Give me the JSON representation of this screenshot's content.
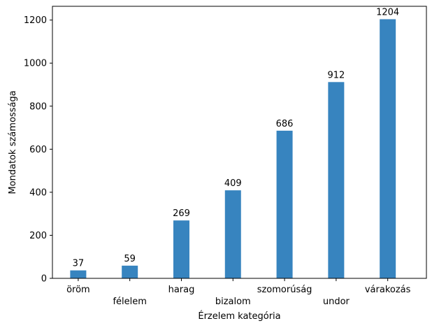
{
  "chart_data": {
    "type": "bar",
    "categories": [
      "öröm",
      "félelem",
      "harag",
      "bizalom",
      "szomorúság",
      "undor",
      "várakozás"
    ],
    "values": [
      37,
      59,
      269,
      409,
      686,
      912,
      1204
    ],
    "data_labels": [
      "37",
      "59",
      "269",
      "409",
      "686",
      "912",
      "1204"
    ],
    "xlabel": "Érzelem kategória",
    "ylabel": "Mondatok számossága",
    "ylim": [
      0,
      1264
    ],
    "yticks": [
      0,
      200,
      400,
      600,
      800,
      1000,
      1200
    ],
    "ytick_labels": [
      "0",
      "200",
      "400",
      "600",
      "800",
      "1000",
      "1200"
    ],
    "grid": false,
    "bar_color": "#3784bf",
    "label_rows": [
      0,
      1,
      0,
      1,
      0,
      1,
      0
    ]
  }
}
